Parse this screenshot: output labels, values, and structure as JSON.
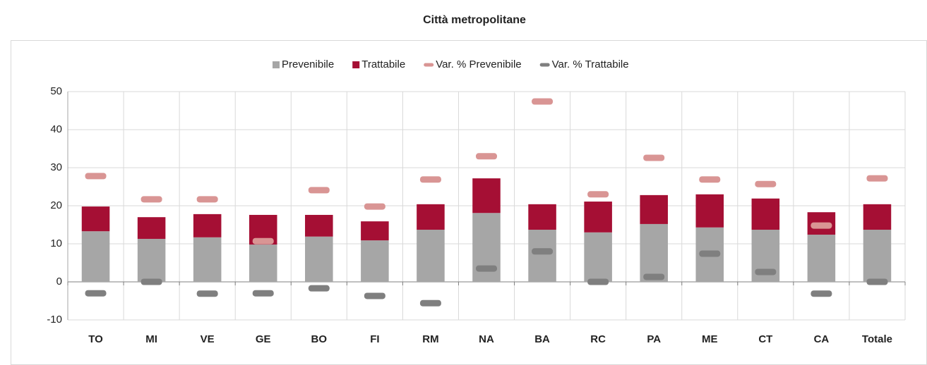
{
  "chart_data": {
    "type": "bar_line_markers",
    "title": "Città metropolitane",
    "categories": [
      "TO",
      "MI",
      "VE",
      "GE",
      "BO",
      "FI",
      "RM",
      "NA",
      "BA",
      "RC",
      "PA",
      "ME",
      "CT",
      "CA",
      "Totale"
    ],
    "series": [
      {
        "name": "Prevenibile",
        "color": "#a6a6a6",
        "kind": "bar",
        "values": [
          13.3,
          11.3,
          11.7,
          9.8,
          11.9,
          10.9,
          13.7,
          18.1,
          13.7,
          13.0,
          15.2,
          14.3,
          13.7,
          12.4,
          13.7
        ]
      },
      {
        "name": "Trattabile",
        "color": "#a50f34",
        "kind": "bar",
        "values": [
          6.5,
          5.7,
          6.1,
          7.8,
          5.7,
          5.0,
          6.7,
          9.1,
          6.7,
          8.1,
          7.6,
          8.7,
          8.2,
          5.9,
          6.7
        ]
      },
      {
        "name": "Var. % Prevenibile",
        "color": "#d99594",
        "kind": "marker",
        "values": [
          27.8,
          21.7,
          21.7,
          10.7,
          24.1,
          19.8,
          26.9,
          33.0,
          47.4,
          23.0,
          32.6,
          26.9,
          25.7,
          14.8,
          27.2
        ]
      },
      {
        "name": "Var. % Trattabile",
        "color": "#7f7f7f",
        "kind": "marker",
        "values": [
          -3.0,
          0,
          -3.1,
          -3.0,
          -1.7,
          -3.7,
          -5.6,
          3.5,
          8.0,
          0,
          1.3,
          7.4,
          2.6,
          -3.1,
          0
        ]
      }
    ],
    "ylim": [
      -10,
      50
    ],
    "yticks": [
      -10,
      0,
      10,
      20,
      30,
      40,
      50
    ],
    "grid": true
  }
}
